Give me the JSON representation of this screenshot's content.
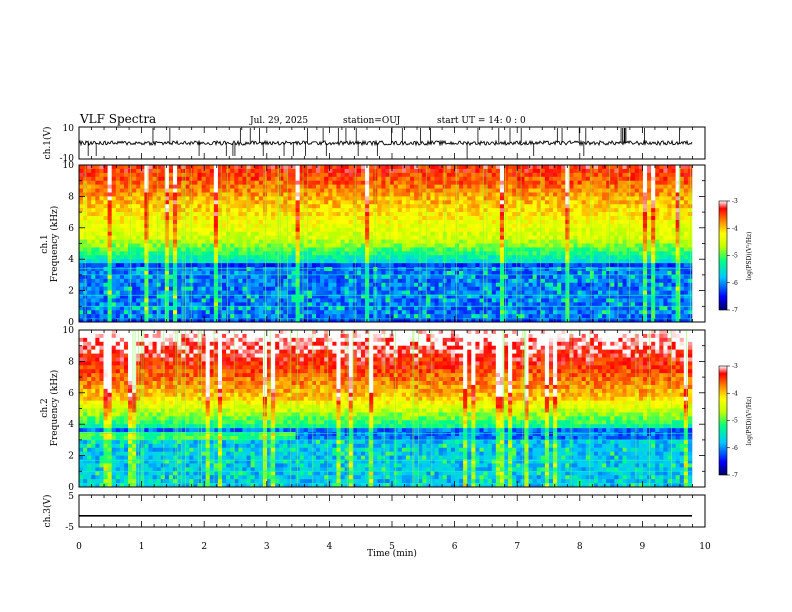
{
  "header": {
    "title": "VLF Spectra",
    "date": "Jul. 29, 2025",
    "station": "station=OUJ",
    "start": "start  UT =   14: 0  : 0"
  },
  "chart_data": [
    {
      "type": "line",
      "panel": "ch1-waveform",
      "ylabel": "ch.1(V)",
      "ylim": [
        -10,
        10
      ],
      "ytick_labels": [
        "10",
        "-10"
      ],
      "baseline": 0,
      "color": "#000000"
    },
    {
      "type": "heatmap",
      "panel": "ch1-spectrogram",
      "ylabel_line1": "ch.1",
      "ylabel_line2": "Frequency (kHz)",
      "ylim": [
        0,
        10
      ],
      "ytick_labels": [
        "0",
        "2",
        "4",
        "6",
        "8",
        "10"
      ],
      "colorbar": {
        "title": "log(PSD)(V²/Hz)",
        "range": [
          -7,
          -3
        ],
        "tick_labels": [
          "-7",
          "-6",
          "-5",
          "-4",
          "-3"
        ]
      }
    },
    {
      "type": "heatmap",
      "panel": "ch2-spectrogram",
      "ylabel_line1": "ch.2",
      "ylabel_line2": "Frequency (kHz)",
      "ylim": [
        0,
        10
      ],
      "ytick_labels": [
        "0",
        "2",
        "4",
        "6",
        "8",
        "10"
      ],
      "colorbar": {
        "title": "log(PSD)(V²/Hz)",
        "range": [
          -7,
          -3
        ],
        "tick_labels": [
          "-7",
          "-6",
          "-5",
          "-4",
          "-3"
        ]
      }
    },
    {
      "type": "line",
      "panel": "ch3-waveform",
      "ylabel": "ch.3(V)",
      "ylim": [
        -5,
        5
      ],
      "ytick_labels": [
        "5",
        "-5"
      ],
      "baseline": -1.5,
      "color": "#000000"
    }
  ],
  "x_axis": {
    "label": "Time (min)",
    "range": [
      0,
      10
    ],
    "tick_labels": [
      "0",
      "1",
      "2",
      "3",
      "4",
      "5",
      "6",
      "7",
      "8",
      "9",
      "10"
    ]
  },
  "colors": {
    "colormap": [
      "#000080",
      "#0000ff",
      "#00bfff",
      "#00ff80",
      "#bfff00",
      "#ffff00",
      "#ff8000",
      "#ff0000",
      "#ffffff"
    ]
  }
}
